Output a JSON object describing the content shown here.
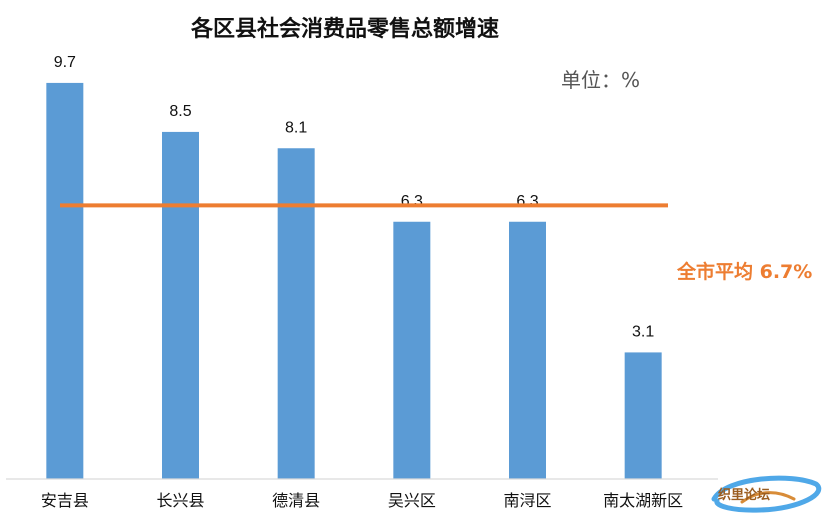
{
  "chart_data": {
    "type": "bar",
    "title": "各区县社会消费品零售总额增速",
    "unit_label": "单位：%",
    "categories": [
      "安吉县",
      "长兴县",
      "德清县",
      "吴兴区",
      "南浔区",
      "南太湖新区"
    ],
    "values": [
      9.7,
      8.5,
      8.1,
      6.3,
      6.3,
      3.1
    ],
    "value_labels": [
      "9.7",
      "8.5",
      "8.1",
      "6.3",
      "6.3",
      "3.1"
    ],
    "reference_line": {
      "label": "全市平均 6.7%",
      "value": 6.7
    },
    "ylim": [
      0,
      10.8
    ],
    "grid": false,
    "colors": {
      "bar": "#5B9BD5",
      "average_line": "#ED7D31",
      "axis": "#D9D9D9"
    }
  },
  "watermark": {
    "text": "织里论坛"
  }
}
